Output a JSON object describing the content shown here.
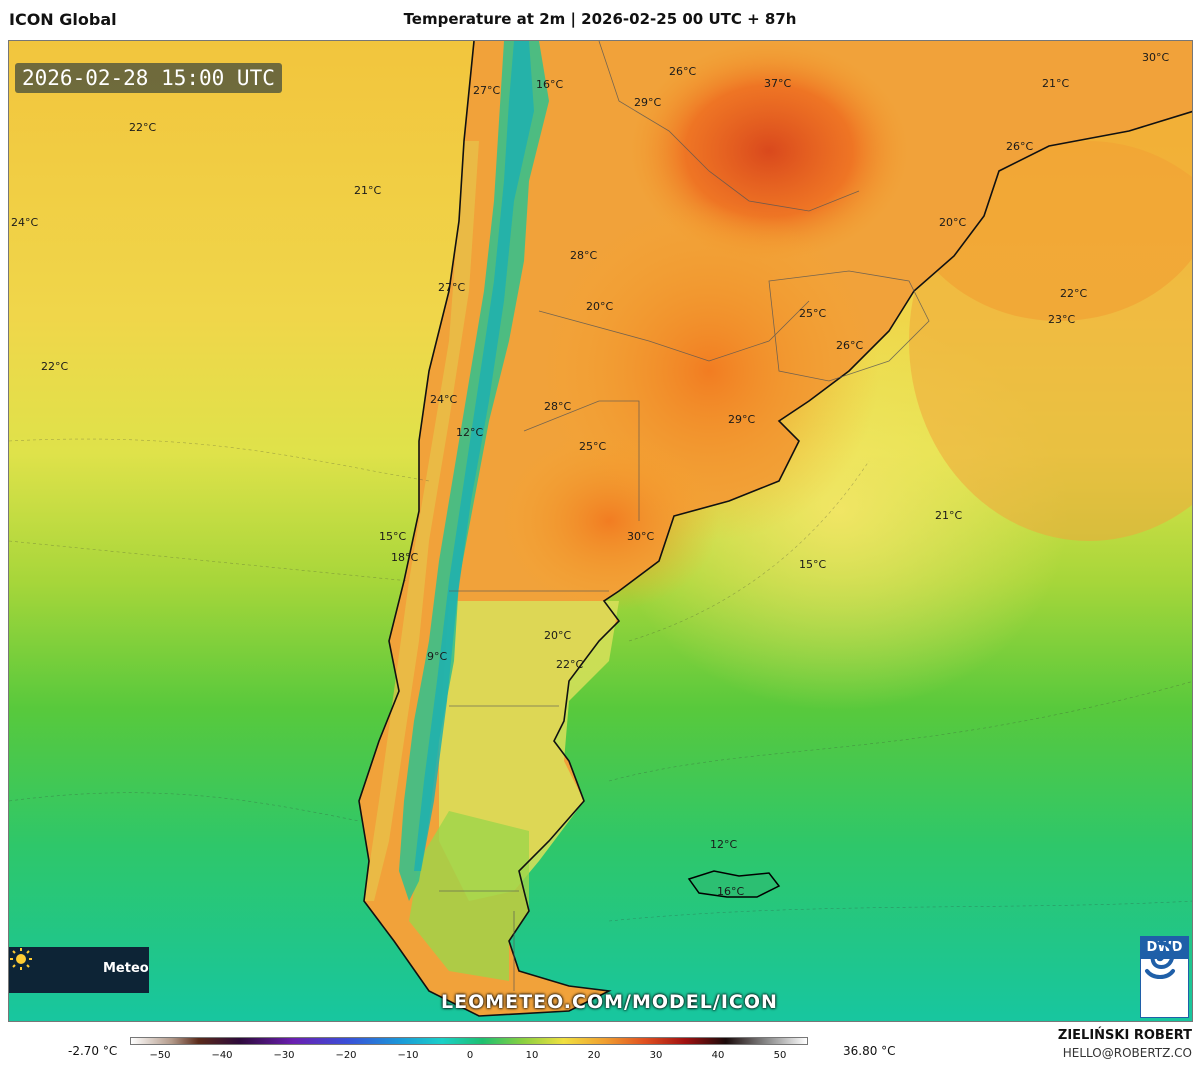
{
  "header": {
    "model_name": "ICON Global",
    "title": "Temperature at 2m | 2026-02-25 00 UTC + 87h"
  },
  "map": {
    "valid_time": "2026-02-28 15:00 UTC",
    "labels": [
      {
        "text": "22°C"
      },
      {
        "text": "21°C"
      },
      {
        "text": "24°C"
      },
      {
        "text": "22°C"
      },
      {
        "text": "27°C"
      },
      {
        "text": "16°C"
      },
      {
        "text": "26°C"
      },
      {
        "text": "37°C"
      },
      {
        "text": "29°C"
      },
      {
        "text": "21°C"
      },
      {
        "text": "30°C"
      },
      {
        "text": "26°C"
      },
      {
        "text": "20°C"
      },
      {
        "text": "28°C"
      },
      {
        "text": "27°C"
      },
      {
        "text": "20°C"
      },
      {
        "text": "25°C"
      },
      {
        "text": "26°C"
      },
      {
        "text": "22°C"
      },
      {
        "text": "23°C"
      },
      {
        "text": "24°C"
      },
      {
        "text": "28°C"
      },
      {
        "text": "29°C"
      },
      {
        "text": "12°C"
      },
      {
        "text": "25°C"
      },
      {
        "text": "30°C"
      },
      {
        "text": "21°C"
      },
      {
        "text": "15°C"
      },
      {
        "text": "15°C"
      },
      {
        "text": "18°C"
      },
      {
        "text": "20°C"
      },
      {
        "text": "9°C"
      },
      {
        "text": "22°C"
      },
      {
        "text": "12°C"
      },
      {
        "text": "16°C"
      }
    ],
    "website": "LEOMETEO.COM/MODEL/ICON",
    "brand": "Meteo",
    "sun_icon": "sun-icon",
    "agency": "DWD"
  },
  "legend": {
    "min": "-2.70 °C",
    "max": "36.80 °C",
    "ticks": [
      "−50",
      "−40",
      "−30",
      "−20",
      "−10",
      "0",
      "10",
      "20",
      "30",
      "40",
      "50"
    ],
    "tick_values": [
      -50,
      -40,
      -30,
      -20,
      -10,
      0,
      10,
      20,
      30,
      40,
      50
    ],
    "range": [
      -50,
      50
    ],
    "author": "ZIELIŃSKI ROBERT",
    "email": "HELLO@ROBERTZ.CO"
  }
}
